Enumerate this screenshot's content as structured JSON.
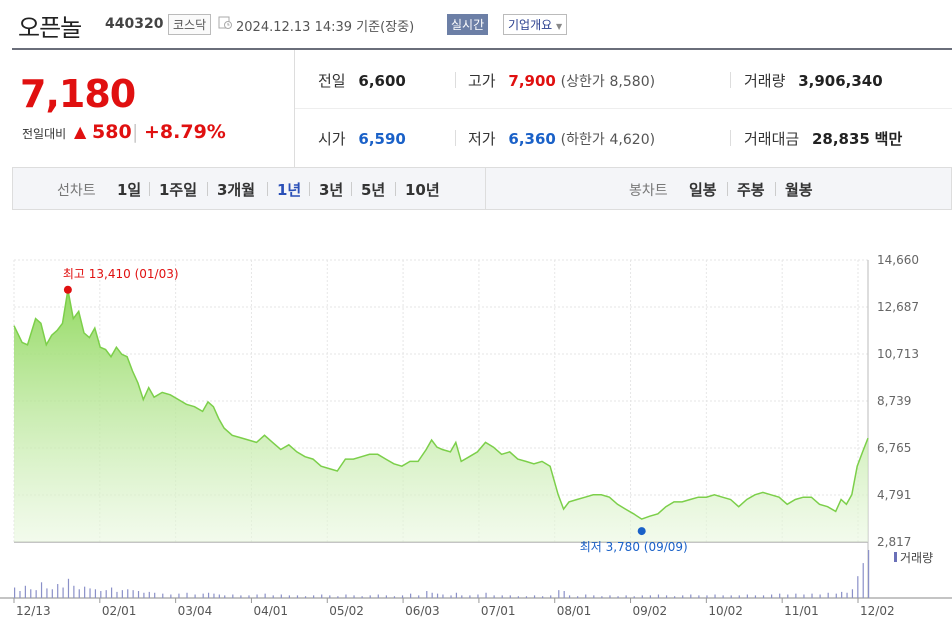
{
  "header": {
    "stock_name": "오픈놀",
    "stock_code": "440320",
    "market": "코스닥",
    "timestamp": "2024.12.13 14:39 기준(장중)",
    "realtime_label": "실시간",
    "corp_overview_label": "기업개요",
    "clock_icon": "clock-icon",
    "dropdown_icon": "chevron-down-icon"
  },
  "summary": {
    "current_price": "7,180",
    "change_label": "전일대비",
    "change_value": "580",
    "change_percent": "+8.79%",
    "up_color": "#e01010",
    "down_color": "#1a61c8",
    "prev_close_label": "전일",
    "prev_close": "6,600",
    "open_label": "시가",
    "open": "6,590",
    "high_label": "고가",
    "high": "7,900",
    "upper_limit_label": "(상한가",
    "upper_limit": "8,580",
    "low_label": "저가",
    "low": "6,360",
    "lower_limit_label": "(하한가",
    "lower_limit": "4,620",
    "volume_label": "거래량",
    "volume": "3,906,340",
    "amount_label": "거래대금",
    "amount": "28,835",
    "amount_unit": "백만",
    "close_paren": ")"
  },
  "tabs": {
    "line_chart_label": "선차트",
    "line_tabs": [
      "1일",
      "1주일",
      "3개월",
      "1년",
      "3년",
      "5년",
      "10년"
    ],
    "active_tab": "1년",
    "candle_chart_label": "봉차트",
    "candle_tabs": [
      "일봉",
      "주봉",
      "월봉"
    ]
  },
  "chart_data": {
    "type": "area",
    "ylim": [
      2817,
      14660
    ],
    "y_ticks": [
      "14,660",
      "12,687",
      "10,713",
      "8,739",
      "6,765",
      "4,791",
      "2,817"
    ],
    "x_ticks": [
      "12/13",
      "02/01",
      "03/04",
      "04/01",
      "05/02",
      "06/03",
      "07/01",
      "08/01",
      "09/02",
      "10/02",
      "11/01",
      "12/02"
    ],
    "high_annotation": "최고 13,410 (01/03)",
    "low_annotation": "최저 3,780 (09/09)",
    "volume_legend": "거래량",
    "line_color": "#7ccf4a",
    "high_marker_color": "#e01010",
    "low_marker_color": "#1a61c8",
    "price_series": [
      [
        0,
        11900
      ],
      [
        3,
        11200
      ],
      [
        5,
        11100
      ],
      [
        8,
        12200
      ],
      [
        10,
        12000
      ],
      [
        12,
        11100
      ],
      [
        14,
        11500
      ],
      [
        16,
        11700
      ],
      [
        18,
        12000
      ],
      [
        20,
        13410
      ],
      [
        22,
        12200
      ],
      [
        24,
        12500
      ],
      [
        26,
        11600
      ],
      [
        28,
        11400
      ],
      [
        30,
        11800
      ],
      [
        32,
        11000
      ],
      [
        34,
        10900
      ],
      [
        36,
        10600
      ],
      [
        38,
        11000
      ],
      [
        40,
        10700
      ],
      [
        42,
        10600
      ],
      [
        44,
        10000
      ],
      [
        46,
        9500
      ],
      [
        48,
        8800
      ],
      [
        50,
        9300
      ],
      [
        52,
        8900
      ],
      [
        55,
        9100
      ],
      [
        58,
        9000
      ],
      [
        61,
        8800
      ],
      [
        64,
        8600
      ],
      [
        67,
        8500
      ],
      [
        70,
        8300
      ],
      [
        72,
        8700
      ],
      [
        74,
        8500
      ],
      [
        76,
        8000
      ],
      [
        78,
        7600
      ],
      [
        81,
        7300
      ],
      [
        84,
        7200
      ],
      [
        87,
        7100
      ],
      [
        90,
        7000
      ],
      [
        93,
        7300
      ],
      [
        96,
        7000
      ],
      [
        99,
        6700
      ],
      [
        102,
        6900
      ],
      [
        105,
        6600
      ],
      [
        108,
        6400
      ],
      [
        111,
        6300
      ],
      [
        114,
        6000
      ],
      [
        117,
        5900
      ],
      [
        120,
        5800
      ],
      [
        123,
        6300
      ],
      [
        126,
        6300
      ],
      [
        129,
        6400
      ],
      [
        132,
        6500
      ],
      [
        135,
        6500
      ],
      [
        138,
        6300
      ],
      [
        141,
        6100
      ],
      [
        144,
        6000
      ],
      [
        147,
        6200
      ],
      [
        150,
        6200
      ],
      [
        153,
        6700
      ],
      [
        155,
        7100
      ],
      [
        157,
        6800
      ],
      [
        159,
        6700
      ],
      [
        162,
        6600
      ],
      [
        164,
        7000
      ],
      [
        166,
        6200
      ],
      [
        169,
        6400
      ],
      [
        172,
        6600
      ],
      [
        175,
        7000
      ],
      [
        178,
        6800
      ],
      [
        181,
        6500
      ],
      [
        184,
        6600
      ],
      [
        187,
        6300
      ],
      [
        190,
        6200
      ],
      [
        193,
        6100
      ],
      [
        196,
        6200
      ],
      [
        199,
        6000
      ],
      [
        202,
        4800
      ],
      [
        204,
        4200
      ],
      [
        206,
        4500
      ],
      [
        209,
        4600
      ],
      [
        212,
        4700
      ],
      [
        215,
        4800
      ],
      [
        218,
        4800
      ],
      [
        221,
        4700
      ],
      [
        224,
        4400
      ],
      [
        227,
        4200
      ],
      [
        230,
        4000
      ],
      [
        233,
        3780
      ],
      [
        236,
        3900
      ],
      [
        239,
        4000
      ],
      [
        242,
        4300
      ],
      [
        245,
        4500
      ],
      [
        248,
        4500
      ],
      [
        251,
        4600
      ],
      [
        254,
        4700
      ],
      [
        257,
        4700
      ],
      [
        260,
        4800
      ],
      [
        263,
        4700
      ],
      [
        266,
        4600
      ],
      [
        269,
        4300
      ],
      [
        272,
        4600
      ],
      [
        275,
        4800
      ],
      [
        278,
        4900
      ],
      [
        281,
        4800
      ],
      [
        284,
        4700
      ],
      [
        287,
        4400
      ],
      [
        290,
        4600
      ],
      [
        293,
        4700
      ],
      [
        296,
        4700
      ],
      [
        299,
        4400
      ],
      [
        302,
        4300
      ],
      [
        305,
        4100
      ],
      [
        307,
        4600
      ],
      [
        309,
        4400
      ],
      [
        311,
        4800
      ],
      [
        313,
        6000
      ],
      [
        315,
        6600
      ],
      [
        317,
        7180
      ]
    ],
    "volume_series": [
      [
        0,
        12
      ],
      [
        2,
        8
      ],
      [
        4,
        14
      ],
      [
        6,
        10
      ],
      [
        8,
        9
      ],
      [
        10,
        18
      ],
      [
        12,
        11
      ],
      [
        14,
        10
      ],
      [
        16,
        16
      ],
      [
        18,
        12
      ],
      [
        20,
        22
      ],
      [
        22,
        14
      ],
      [
        24,
        10
      ],
      [
        26,
        13
      ],
      [
        28,
        11
      ],
      [
        30,
        10
      ],
      [
        32,
        8
      ],
      [
        34,
        9
      ],
      [
        36,
        12
      ],
      [
        38,
        7
      ],
      [
        40,
        9
      ],
      [
        42,
        10
      ],
      [
        44,
        9
      ],
      [
        46,
        8
      ],
      [
        48,
        6
      ],
      [
        50,
        7
      ],
      [
        52,
        6
      ],
      [
        55,
        5
      ],
      [
        58,
        4
      ],
      [
        61,
        5
      ],
      [
        64,
        6
      ],
      [
        67,
        4
      ],
      [
        70,
        5
      ],
      [
        72,
        6
      ],
      [
        74,
        5
      ],
      [
        76,
        4
      ],
      [
        78,
        3
      ],
      [
        81,
        4
      ],
      [
        84,
        3
      ],
      [
        87,
        3
      ],
      [
        90,
        4
      ],
      [
        93,
        5
      ],
      [
        96,
        3
      ],
      [
        99,
        4
      ],
      [
        102,
        3
      ],
      [
        105,
        3
      ],
      [
        108,
        2
      ],
      [
        111,
        3
      ],
      [
        114,
        4
      ],
      [
        117,
        3
      ],
      [
        120,
        2
      ],
      [
        123,
        4
      ],
      [
        126,
        3
      ],
      [
        129,
        2
      ],
      [
        132,
        3
      ],
      [
        135,
        4
      ],
      [
        138,
        3
      ],
      [
        141,
        2
      ],
      [
        144,
        3
      ],
      [
        147,
        5
      ],
      [
        150,
        3
      ],
      [
        153,
        8
      ],
      [
        155,
        6
      ],
      [
        157,
        5
      ],
      [
        159,
        4
      ],
      [
        162,
        3
      ],
      [
        164,
        6
      ],
      [
        166,
        3
      ],
      [
        169,
        3
      ],
      [
        172,
        4
      ],
      [
        175,
        6
      ],
      [
        178,
        3
      ],
      [
        181,
        3
      ],
      [
        184,
        3
      ],
      [
        187,
        2
      ],
      [
        190,
        2
      ],
      [
        193,
        3
      ],
      [
        196,
        2
      ],
      [
        199,
        3
      ],
      [
        202,
        9
      ],
      [
        204,
        8
      ],
      [
        206,
        3
      ],
      [
        209,
        2
      ],
      [
        212,
        4
      ],
      [
        215,
        3
      ],
      [
        218,
        2
      ],
      [
        221,
        3
      ],
      [
        224,
        2
      ],
      [
        227,
        3
      ],
      [
        230,
        2
      ],
      [
        233,
        3
      ],
      [
        236,
        3
      ],
      [
        239,
        4
      ],
      [
        242,
        3
      ],
      [
        245,
        2
      ],
      [
        248,
        3
      ],
      [
        251,
        4
      ],
      [
        254,
        3
      ],
      [
        257,
        3
      ],
      [
        260,
        4
      ],
      [
        263,
        3
      ],
      [
        266,
        3
      ],
      [
        269,
        3
      ],
      [
        272,
        4
      ],
      [
        275,
        3
      ],
      [
        278,
        3
      ],
      [
        281,
        4
      ],
      [
        284,
        5
      ],
      [
        287,
        4
      ],
      [
        290,
        5
      ],
      [
        293,
        4
      ],
      [
        296,
        5
      ],
      [
        299,
        4
      ],
      [
        302,
        6
      ],
      [
        305,
        5
      ],
      [
        307,
        7
      ],
      [
        309,
        6
      ],
      [
        311,
        10
      ],
      [
        313,
        25
      ],
      [
        315,
        40
      ],
      [
        317,
        55
      ]
    ]
  }
}
